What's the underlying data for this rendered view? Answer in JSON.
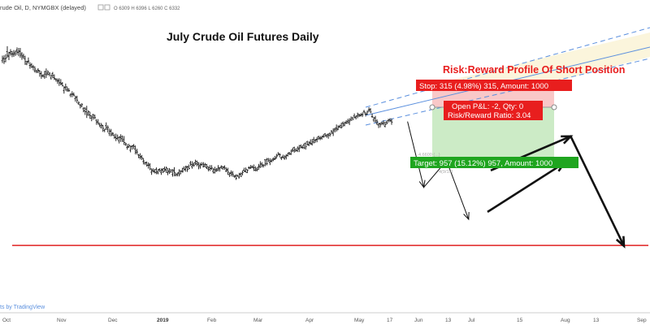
{
  "header": {
    "symbol_line": "rude Oil, D, NYMGBX (delayed)",
    "ohlc": "O 6309 H 6396 L 6260 C 6332"
  },
  "chart_data": {
    "type": "ohlc",
    "title": "July Crude Oil Futures Daily",
    "subtitle": "Risk:Reward Profile Of Short Position",
    "x_tick_labels": [
      "Oct",
      "Nov",
      "Dec",
      "2019",
      "Feb",
      "Mar",
      "Apr",
      "May",
      "17",
      "Jun",
      "13",
      "Jul",
      "15",
      "Aug",
      "13",
      "Sep"
    ],
    "bars": [
      [
        0.85,
        0.855,
        0.867,
        0.842
      ],
      [
        0.859,
        0.847,
        0.868,
        0.839
      ],
      [
        0.856,
        0.859,
        0.872,
        0.845
      ],
      [
        0.881,
        0.868,
        0.899,
        0.86
      ],
      [
        0.865,
        0.878,
        0.88,
        0.852
      ],
      [
        0.876,
        0.881,
        0.889,
        0.867
      ],
      [
        0.873,
        0.874,
        0.883,
        0.862
      ],
      [
        0.871,
        0.877,
        0.886,
        0.863
      ],
      [
        0.873,
        0.882,
        0.884,
        0.866
      ],
      [
        0.886,
        0.879,
        0.895,
        0.87
      ],
      [
        0.878,
        0.883,
        0.893,
        0.865
      ],
      [
        0.881,
        0.868,
        0.893,
        0.86
      ],
      [
        0.873,
        0.863,
        0.879,
        0.853
      ],
      [
        0.867,
        0.863,
        0.874,
        0.856
      ],
      [
        0.856,
        0.847,
        0.867,
        0.836
      ],
      [
        0.839,
        0.846,
        0.85,
        0.835
      ],
      [
        0.848,
        0.849,
        0.861,
        0.84
      ],
      [
        0.834,
        0.833,
        0.845,
        0.823
      ],
      [
        0.837,
        0.829,
        0.842,
        0.825
      ],
      [
        0.83,
        0.829,
        0.836,
        0.818
      ],
      [
        0.816,
        0.822,
        0.831,
        0.81
      ],
      [
        0.816,
        0.813,
        0.819,
        0.808
      ],
      [
        0.819,
        0.818,
        0.825,
        0.808
      ],
      [
        0.815,
        0.807,
        0.818,
        0.796
      ],
      [
        0.806,
        0.798,
        0.815,
        0.789
      ],
      [
        0.8,
        0.801,
        0.804,
        0.794
      ],
      [
        0.796,
        0.805,
        0.816,
        0.789
      ],
      [
        0.813,
        0.803,
        0.824,
        0.792
      ],
      [
        0.808,
        0.812,
        0.818,
        0.801
      ],
      [
        0.804,
        0.808,
        0.811,
        0.797
      ],
      [
        0.792,
        0.8,
        0.804,
        0.786
      ],
      [
        0.807,
        0.8,
        0.812,
        0.791
      ],
      [
        0.793,
        0.79,
        0.804,
        0.785
      ],
      [
        0.788,
        0.788,
        0.79,
        0.78
      ],
      [
        0.782,
        0.781,
        0.79,
        0.772
      ],
      [
        0.784,
        0.775,
        0.791,
        0.765
      ],
      [
        0.776,
        0.771,
        0.788,
        0.767
      ],
      [
        0.774,
        0.766,
        0.778,
        0.763
      ],
      [
        0.749,
        0.761,
        0.764,
        0.739
      ],
      [
        0.759,
        0.762,
        0.773,
        0.749
      ],
      [
        0.751,
        0.754,
        0.763,
        0.745
      ],
      [
        0.749,
        0.749,
        0.757,
        0.745
      ],
      [
        0.734,
        0.737,
        0.74,
        0.727
      ],
      [
        0.737,
        0.738,
        0.747,
        0.727
      ],
      [
        0.736,
        0.734,
        0.743,
        0.73
      ],
      [
        0.722,
        0.726,
        0.732,
        0.712
      ],
      [
        0.727,
        0.717,
        0.732,
        0.707
      ],
      [
        0.705,
        0.709,
        0.713,
        0.701
      ],
      [
        0.701,
        0.7,
        0.705,
        0.689
      ],
      [
        0.695,
        0.702,
        0.707,
        0.694
      ],
      [
        0.688,
        0.681,
        0.693,
        0.676
      ],
      [
        0.69,
        0.678,
        0.693,
        0.667
      ],
      [
        0.687,
        0.668,
        0.698,
        0.657
      ],
      [
        0.674,
        0.678,
        0.683,
        0.664
      ],
      [
        0.667,
        0.664,
        0.678,
        0.654
      ],
      [
        0.656,
        0.66,
        0.666,
        0.646
      ],
      [
        0.668,
        0.658,
        0.671,
        0.651
      ],
      [
        0.666,
        0.658,
        0.668,
        0.653
      ],
      [
        0.649,
        0.643,
        0.653,
        0.634
      ],
      [
        0.644,
        0.639,
        0.653,
        0.635
      ],
      [
        0.634,
        0.631,
        0.641,
        0.626
      ],
      [
        0.625,
        0.633,
        0.64,
        0.621
      ],
      [
        0.631,
        0.622,
        0.633,
        0.61
      ],
      [
        0.615,
        0.619,
        0.62,
        0.609
      ],
      [
        0.631,
        0.625,
        0.642,
        0.617
      ],
      [
        0.619,
        0.625,
        0.632,
        0.608
      ],
      [
        0.605,
        0.612,
        0.621,
        0.596
      ],
      [
        0.613,
        0.6,
        0.62,
        0.595
      ],
      [
        0.605,
        0.605,
        0.609,
        0.597
      ],
      [
        0.599,
        0.592,
        0.602,
        0.587
      ],
      [
        0.591,
        0.588,
        0.604,
        0.579
      ],
      [
        0.588,
        0.591,
        0.601,
        0.582
      ],
      [
        0.58,
        0.593,
        0.595,
        0.571
      ],
      [
        0.591,
        0.587,
        0.602,
        0.576
      ],
      [
        0.594,
        0.579,
        0.598,
        0.576
      ],
      [
        0.585,
        0.574,
        0.596,
        0.566
      ],
      [
        0.567,
        0.57,
        0.574,
        0.563
      ],
      [
        0.558,
        0.56,
        0.569,
        0.55
      ],
      [
        0.558,
        0.563,
        0.57,
        0.557
      ],
      [
        0.548,
        0.561,
        0.564,
        0.541
      ],
      [
        0.561,
        0.562,
        0.565,
        0.55
      ],
      [
        0.564,
        0.561,
        0.569,
        0.552
      ],
      [
        0.552,
        0.541,
        0.564,
        0.534
      ],
      [
        0.546,
        0.542,
        0.553,
        0.534
      ],
      [
        0.532,
        0.531,
        0.536,
        0.521
      ],
      [
        0.524,
        0.527,
        0.538,
        0.517
      ],
      [
        0.524,
        0.521,
        0.532,
        0.515
      ],
      [
        0.51,
        0.512,
        0.522,
        0.5
      ],
      [
        0.505,
        0.506,
        0.509,
        0.498
      ],
      [
        0.507,
        0.498,
        0.51,
        0.493
      ],
      [
        0.497,
        0.497,
        0.507,
        0.486
      ],
      [
        0.501,
        0.485,
        0.504,
        0.481
      ],
      [
        0.474,
        0.482,
        0.487,
        0.465
      ],
      [
        0.478,
        0.479,
        0.487,
        0.473
      ],
      [
        0.475,
        0.473,
        0.485,
        0.47
      ],
      [
        0.484,
        0.475,
        0.49,
        0.467
      ],
      [
        0.471,
        0.482,
        0.484,
        0.467
      ],
      [
        0.484,
        0.479,
        0.487,
        0.475
      ],
      [
        0.473,
        0.483,
        0.487,
        0.465
      ],
      [
        0.481,
        0.476,
        0.488,
        0.471
      ],
      [
        0.486,
        0.484,
        0.493,
        0.475
      ],
      [
        0.481,
        0.488,
        0.493,
        0.472
      ],
      [
        0.473,
        0.478,
        0.488,
        0.464
      ],
      [
        0.474,
        0.482,
        0.488,
        0.468
      ],
      [
        0.475,
        0.482,
        0.483,
        0.472
      ],
      [
        0.466,
        0.482,
        0.484,
        0.459
      ],
      [
        0.478,
        0.472,
        0.491,
        0.46
      ],
      [
        0.465,
        0.466,
        0.472,
        0.46
      ],
      [
        0.466,
        0.469,
        0.473,
        0.46
      ],
      [
        0.473,
        0.468,
        0.484,
        0.46
      ],
      [
        0.478,
        0.477,
        0.48,
        0.467
      ],
      [
        0.478,
        0.475,
        0.489,
        0.473
      ],
      [
        0.487,
        0.484,
        0.494,
        0.478
      ],
      [
        0.484,
        0.49,
        0.496,
        0.476
      ],
      [
        0.493,
        0.483,
        0.496,
        0.475
      ],
      [
        0.492,
        0.486,
        0.5,
        0.484
      ],
      [
        0.505,
        0.5,
        0.512,
        0.495
      ],
      [
        0.493,
        0.501,
        0.511,
        0.486
      ],
      [
        0.497,
        0.498,
        0.507,
        0.492
      ],
      [
        0.506,
        0.502,
        0.516,
        0.498
      ],
      [
        0.511,
        0.5,
        0.513,
        0.494
      ],
      [
        0.505,
        0.493,
        0.508,
        0.484
      ],
      [
        0.498,
        0.499,
        0.506,
        0.486
      ],
      [
        0.5,
        0.501,
        0.508,
        0.496
      ],
      [
        0.493,
        0.5,
        0.508,
        0.49
      ],
      [
        0.495,
        0.5,
        0.505,
        0.49
      ],
      [
        0.489,
        0.492,
        0.502,
        0.485
      ],
      [
        0.485,
        0.484,
        0.494,
        0.477
      ],
      [
        0.49,
        0.487,
        0.498,
        0.478
      ],
      [
        0.486,
        0.488,
        0.498,
        0.482
      ],
      [
        0.477,
        0.483,
        0.488,
        0.47
      ],
      [
        0.472,
        0.483,
        0.492,
        0.47
      ],
      [
        0.479,
        0.48,
        0.488,
        0.475
      ],
      [
        0.485,
        0.489,
        0.498,
        0.477
      ],
      [
        0.485,
        0.489,
        0.491,
        0.476
      ],
      [
        0.493,
        0.487,
        0.497,
        0.486
      ],
      [
        0.493,
        0.49,
        0.494,
        0.482
      ],
      [
        0.492,
        0.488,
        0.497,
        0.482
      ],
      [
        0.478,
        0.483,
        0.49,
        0.474
      ],
      [
        0.481,
        0.474,
        0.489,
        0.465
      ],
      [
        0.466,
        0.472,
        0.473,
        0.458
      ],
      [
        0.47,
        0.473,
        0.48,
        0.46
      ],
      [
        0.468,
        0.467,
        0.478,
        0.459
      ],
      [
        0.461,
        0.46,
        0.464,
        0.455
      ],
      [
        0.462,
        0.453,
        0.467,
        0.448
      ],
      [
        0.463,
        0.46,
        0.466,
        0.458
      ],
      [
        0.455,
        0.467,
        0.472,
        0.453
      ],
      [
        0.468,
        0.46,
        0.473,
        0.458
      ],
      [
        0.469,
        0.473,
        0.48,
        0.463
      ],
      [
        0.481,
        0.476,
        0.489,
        0.476
      ],
      [
        0.478,
        0.484,
        0.49,
        0.473
      ],
      [
        0.473,
        0.481,
        0.484,
        0.471
      ],
      [
        0.489,
        0.488,
        0.494,
        0.484
      ],
      [
        0.489,
        0.489,
        0.498,
        0.485
      ],
      [
        0.493,
        0.492,
        0.497,
        0.488
      ],
      [
        0.488,
        0.489,
        0.5,
        0.478
      ],
      [
        0.481,
        0.485,
        0.494,
        0.477
      ],
      [
        0.48,
        0.483,
        0.491,
        0.477
      ],
      [
        0.491,
        0.496,
        0.502,
        0.482
      ],
      [
        0.492,
        0.502,
        0.511,
        0.488
      ],
      [
        0.501,
        0.496,
        0.508,
        0.49
      ],
      [
        0.499,
        0.498,
        0.5,
        0.49
      ],
      [
        0.516,
        0.502,
        0.517,
        0.494
      ],
      [
        0.516,
        0.503,
        0.522,
        0.497
      ],
      [
        0.518,
        0.513,
        0.522,
        0.508
      ],
      [
        0.507,
        0.512,
        0.521,
        0.498
      ],
      [
        0.511,
        0.513,
        0.519,
        0.507
      ],
      [
        0.518,
        0.516,
        0.524,
        0.511
      ],
      [
        0.519,
        0.519,
        0.529,
        0.515
      ],
      [
        0.523,
        0.528,
        0.536,
        0.52
      ],
      [
        0.531,
        0.536,
        0.542,
        0.531
      ],
      [
        0.534,
        0.533,
        0.538,
        0.524
      ],
      [
        0.522,
        0.523,
        0.527,
        0.515
      ],
      [
        0.526,
        0.524,
        0.533,
        0.521
      ],
      [
        0.52,
        0.528,
        0.531,
        0.516
      ],
      [
        0.524,
        0.53,
        0.535,
        0.517
      ],
      [
        0.531,
        0.537,
        0.54,
        0.527
      ],
      [
        0.54,
        0.535,
        0.542,
        0.532
      ],
      [
        0.536,
        0.545,
        0.55,
        0.532
      ],
      [
        0.55,
        0.547,
        0.557,
        0.542
      ],
      [
        0.557,
        0.55,
        0.56,
        0.54
      ],
      [
        0.545,
        0.547,
        0.555,
        0.544
      ],
      [
        0.547,
        0.556,
        0.561,
        0.542
      ],
      [
        0.552,
        0.556,
        0.566,
        0.542
      ],
      [
        0.563,
        0.559,
        0.568,
        0.555
      ],
      [
        0.557,
        0.557,
        0.565,
        0.553
      ],
      [
        0.566,
        0.556,
        0.572,
        0.552
      ],
      [
        0.572,
        0.56,
        0.574,
        0.55
      ],
      [
        0.576,
        0.568,
        0.58,
        0.564
      ],
      [
        0.566,
        0.575,
        0.578,
        0.562
      ],
      [
        0.572,
        0.571,
        0.585,
        0.566
      ],
      [
        0.569,
        0.576,
        0.586,
        0.564
      ],
      [
        0.584,
        0.575,
        0.593,
        0.571
      ],
      [
        0.582,
        0.582,
        0.586,
        0.574
      ],
      [
        0.585,
        0.586,
        0.593,
        0.575
      ],
      [
        0.594,
        0.587,
        0.597,
        0.584
      ],
      [
        0.59,
        0.588,
        0.596,
        0.582
      ],
      [
        0.59,
        0.594,
        0.597,
        0.584
      ],
      [
        0.596,
        0.594,
        0.603,
        0.59
      ],
      [
        0.603,
        0.597,
        0.606,
        0.594
      ],
      [
        0.597,
        0.597,
        0.603,
        0.59
      ],
      [
        0.602,
        0.599,
        0.605,
        0.587
      ],
      [
        0.605,
        0.601,
        0.608,
        0.594
      ],
      [
        0.613,
        0.609,
        0.616,
        0.603
      ],
      [
        0.605,
        0.614,
        0.622,
        0.596
      ],
      [
        0.619,
        0.619,
        0.624,
        0.608
      ],
      [
        0.624,
        0.621,
        0.635,
        0.611
      ],
      [
        0.617,
        0.626,
        0.632,
        0.616
      ],
      [
        0.629,
        0.625,
        0.634,
        0.624
      ],
      [
        0.632,
        0.626,
        0.641,
        0.621
      ],
      [
        0.64,
        0.637,
        0.645,
        0.627
      ],
      [
        0.632,
        0.643,
        0.644,
        0.629
      ],
      [
        0.639,
        0.64,
        0.649,
        0.637
      ],
      [
        0.645,
        0.647,
        0.654,
        0.638
      ],
      [
        0.641,
        0.647,
        0.656,
        0.633
      ],
      [
        0.652,
        0.649,
        0.662,
        0.648
      ],
      [
        0.657,
        0.652,
        0.661,
        0.65
      ],
      [
        0.664,
        0.658,
        0.672,
        0.656
      ],
      [
        0.66,
        0.663,
        0.665,
        0.652
      ],
      [
        0.664,
        0.67,
        0.675,
        0.656
      ],
      [
        0.665,
        0.667,
        0.671,
        0.66
      ],
      [
        0.664,
        0.667,
        0.673,
        0.662
      ],
      [
        0.669,
        0.668,
        0.676,
        0.66
      ],
      [
        0.679,
        0.677,
        0.684,
        0.672
      ],
      [
        0.67,
        0.67,
        0.677,
        0.662
      ],
      [
        0.67,
        0.677,
        0.682,
        0.667
      ],
      [
        0.684,
        0.683,
        0.693,
        0.677
      ],
      [
        0.686,
        0.677,
        0.69,
        0.673
      ],
      [
        0.662,
        0.661,
        0.672,
        0.657
      ],
      [
        0.65,
        0.657,
        0.66,
        0.643
      ],
      [
        0.657,
        0.647,
        0.664,
        0.641
      ],
      [
        0.639,
        0.644,
        0.652,
        0.633
      ],
      [
        0.633,
        0.637,
        0.64,
        0.623
      ],
      [
        0.638,
        0.634,
        0.641,
        0.625
      ],
      [
        0.64,
        0.639,
        0.645,
        0.634
      ],
      [
        0.638,
        0.641,
        0.649,
        0.632
      ],
      [
        0.629,
        0.635,
        0.643,
        0.625
      ],
      [
        0.643,
        0.64,
        0.648,
        0.635
      ],
      [
        0.648,
        0.65,
        0.654,
        0.642
      ],
      [
        0.65,
        0.648,
        0.656,
        0.643
      ],
      [
        0.647,
        0.643,
        0.655,
        0.634
      ]
    ],
    "projections": [
      {
        "name": "",
        "points": [
          [
            0.627,
            0.645
          ],
          [
            0.652,
            0.423
          ],
          [
            0.687,
            0.513
          ],
          [
            0.721,
            0.315
          ]
        ]
      },
      {
        "name": "",
        "points": [
          [
            0.75,
            0.34
          ],
          [
            0.868,
            0.505
          ]
        ]
      },
      {
        "name": "",
        "points": [
          [
            0.755,
            0.48
          ],
          [
            0.878,
            0.595
          ],
          [
            0.96,
            0.225
          ]
        ]
      }
    ],
    "support_level": 0.227,
    "position": {
      "entry": 0.655,
      "stop": 0.73,
      "target": 0.487,
      "stop_label": "Stop: 315 (4.98%) 315, Amount: 1000",
      "target_label": "Target: 957 (15.12%) 957, Amount: 1000",
      "open_pnl_label": "Open P&L: -2, Qty: 0",
      "ratio_label": "Risk/Reward Ratio: 3.04"
    },
    "faint_labels": [
      "4.6600 (...)",
      "4(9/15)"
    ],
    "footer": "ts by TradingView"
  }
}
